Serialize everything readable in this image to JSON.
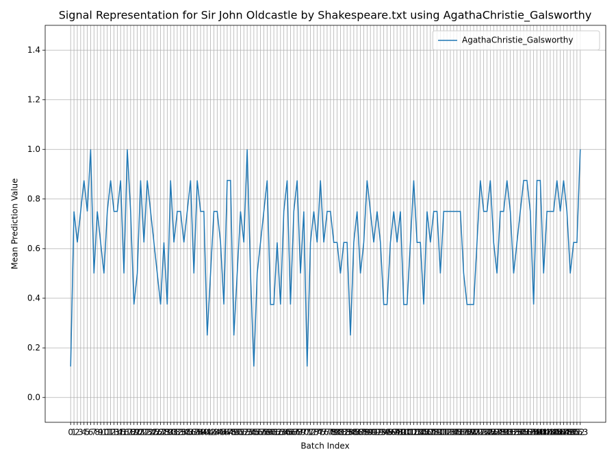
{
  "chart_data": {
    "type": "line",
    "title": "Signal Representation for Sir John Oldcastle by Shakespeare.txt using AgathaChristie_Galsworthy",
    "xlabel": "Batch Index",
    "ylabel": "Mean Prediction Value",
    "x": [
      0,
      1,
      2,
      3,
      4,
      5,
      6,
      7,
      8,
      9,
      10,
      11,
      12,
      13,
      14,
      15,
      16,
      17,
      18,
      19,
      20,
      21,
      22,
      23,
      24,
      25,
      26,
      27,
      28,
      29,
      30,
      31,
      32,
      33,
      34,
      35,
      36,
      37,
      38,
      39,
      40,
      41,
      42,
      43,
      44,
      45,
      46,
      47,
      48,
      49,
      50,
      51,
      52,
      53,
      54,
      55,
      56,
      57,
      58,
      59,
      60,
      61,
      62,
      63,
      64,
      65,
      66,
      67,
      68,
      69,
      70,
      71,
      72,
      73,
      74,
      75,
      76,
      77,
      78,
      79,
      80,
      81,
      82,
      83,
      84,
      85,
      86,
      87,
      88,
      89,
      90,
      91,
      92,
      93,
      94,
      95,
      96,
      97,
      98,
      99,
      100,
      101,
      102,
      103,
      104,
      105,
      106,
      107,
      108,
      109,
      110,
      111,
      112,
      113,
      114,
      115,
      116,
      117,
      118,
      119,
      120,
      121,
      122,
      123,
      124,
      125,
      126,
      127,
      128,
      129,
      130,
      131,
      132,
      133,
      134,
      135,
      136,
      137,
      138,
      139,
      140,
      141,
      142,
      143,
      144,
      145,
      146,
      147,
      148,
      149,
      150,
      151,
      152,
      153
    ],
    "series": [
      {
        "name": "AgathaChristie_Galsworthy",
        "color": "#1f77b4",
        "values": [
          0.125,
          0.75,
          0.625,
          0.75,
          0.875,
          0.75,
          1.0,
          0.5,
          0.75,
          0.625,
          0.5,
          0.75,
          0.875,
          0.75,
          0.75,
          0.875,
          0.5,
          1.0,
          0.75,
          0.375,
          0.5,
          0.875,
          0.625,
          0.875,
          0.75,
          0.625,
          0.5,
          0.375,
          0.625,
          0.375,
          0.875,
          0.625,
          0.75,
          0.75,
          0.625,
          0.75,
          0.875,
          0.5,
          0.875,
          0.75,
          0.75,
          0.25,
          0.5,
          0.75,
          0.75,
          0.625,
          0.375,
          0.875,
          0.875,
          0.25,
          0.5,
          0.75,
          0.625,
          1.0,
          0.5,
          0.125,
          0.5,
          0.625,
          0.75,
          0.875,
          0.375,
          0.375,
          0.625,
          0.375,
          0.75,
          0.875,
          0.375,
          0.75,
          0.875,
          0.5,
          0.75,
          0.125,
          0.625,
          0.75,
          0.625,
          0.875,
          0.625,
          0.75,
          0.75,
          0.625,
          0.625,
          0.5,
          0.625,
          0.625,
          0.25,
          0.625,
          0.75,
          0.5,
          0.625,
          0.875,
          0.75,
          0.625,
          0.75,
          0.625,
          0.375,
          0.375,
          0.625,
          0.75,
          0.625,
          0.75,
          0.375,
          0.375,
          0.625,
          0.875,
          0.625,
          0.625,
          0.375,
          0.75,
          0.625,
          0.75,
          0.75,
          0.5,
          0.75,
          0.75,
          0.75,
          0.75,
          0.75,
          0.75,
          0.5,
          0.375,
          0.375,
          0.375,
          0.625,
          0.875,
          0.75,
          0.75,
          0.875,
          0.625,
          0.5,
          0.75,
          0.75,
          0.875,
          0.75,
          0.5,
          0.625,
          0.75,
          0.875,
          0.875,
          0.75,
          0.375,
          0.875,
          0.875,
          0.5,
          0.75,
          0.75,
          0.75,
          0.875,
          0.75,
          0.875,
          0.75,
          0.5,
          0.625,
          0.625,
          1.0
        ]
      }
    ],
    "xlim": [
      -7.65,
      160.65
    ],
    "ylim": [
      -0.1,
      1.5
    ],
    "xticks": [
      0,
      1,
      2,
      3,
      4,
      5,
      6,
      7,
      8,
      9,
      10,
      11,
      12,
      13,
      14,
      15,
      16,
      17,
      18,
      19,
      20,
      21,
      22,
      23,
      24,
      25,
      26,
      27,
      28,
      29,
      30,
      31,
      32,
      33,
      34,
      35,
      36,
      37,
      38,
      39,
      40,
      41,
      42,
      43,
      44,
      45,
      46,
      47,
      48,
      49,
      50,
      51,
      52,
      53,
      54,
      55,
      56,
      57,
      58,
      59,
      60,
      61,
      62,
      63,
      64,
      65,
      66,
      67,
      68,
      69,
      70,
      71,
      72,
      73,
      74,
      75,
      76,
      77,
      78,
      79,
      80,
      81,
      82,
      83,
      84,
      85,
      86,
      87,
      88,
      89,
      90,
      91,
      92,
      93,
      94,
      95,
      96,
      97,
      98,
      99,
      100,
      101,
      102,
      103,
      104,
      105,
      106,
      107,
      108,
      109,
      110,
      111,
      112,
      113,
      114,
      115,
      116,
      117,
      118,
      119,
      120,
      121,
      122,
      123,
      124,
      125,
      126,
      127,
      128,
      129,
      130,
      131,
      132,
      133,
      134,
      135,
      136,
      137,
      138,
      139,
      140,
      141,
      142,
      143,
      144,
      145,
      146,
      147,
      148,
      149,
      150,
      151,
      152,
      153
    ],
    "yticks": [
      {
        "value": 0,
        "label": "0.0"
      },
      {
        "value": 0.2,
        "label": "0.2"
      },
      {
        "value": 0.4,
        "label": "0.4"
      },
      {
        "value": 0.6,
        "label": "0.6"
      },
      {
        "value": 0.8,
        "label": "0.8"
      },
      {
        "value": 1,
        "label": "1.0"
      },
      {
        "value": 1.2,
        "label": "1.2"
      },
      {
        "value": 1.4,
        "label": "1.4"
      }
    ],
    "grid": true,
    "legend": "upper right"
  }
}
